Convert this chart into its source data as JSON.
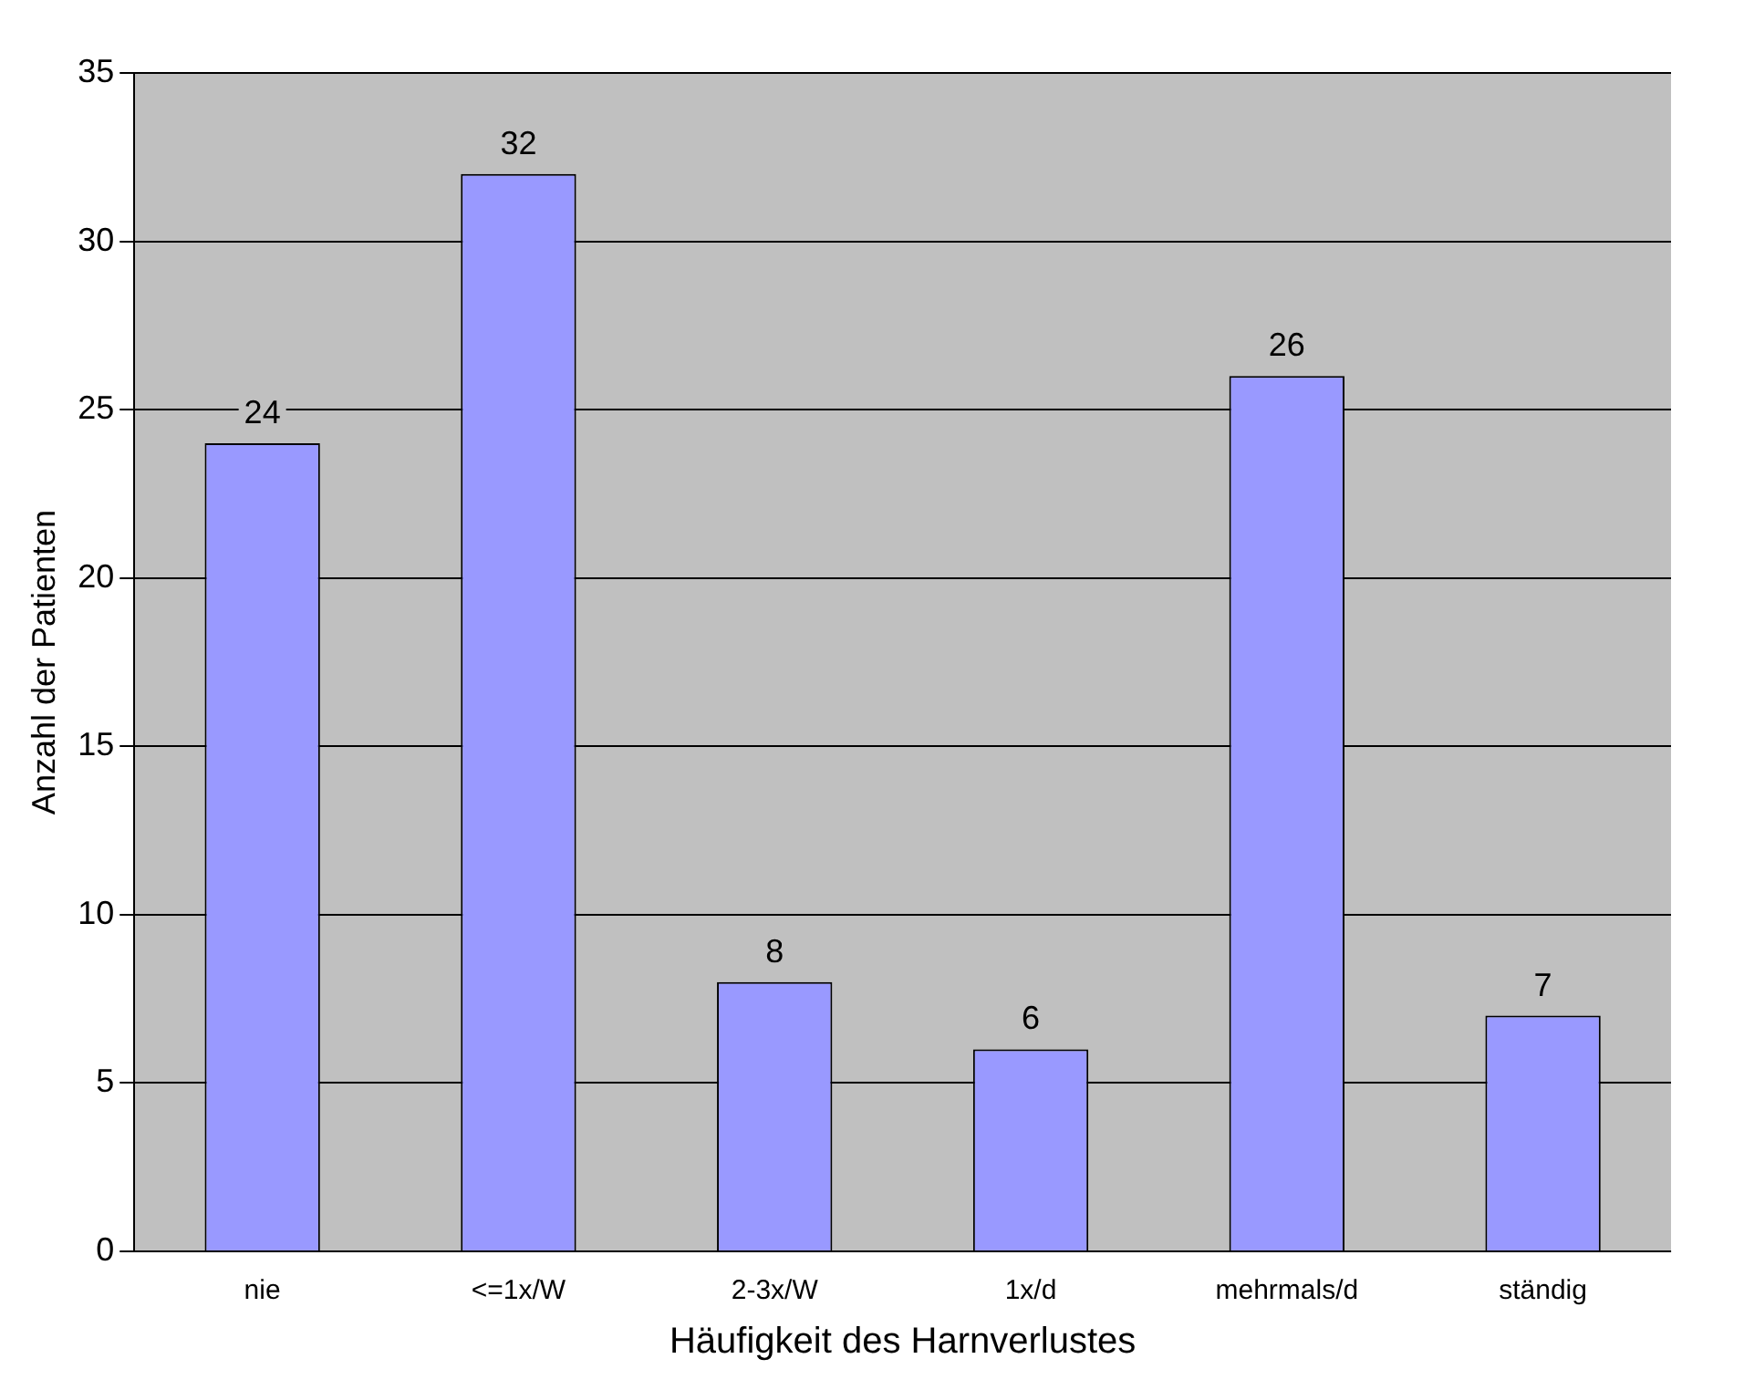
{
  "chart_data": {
    "type": "bar",
    "xlabel": "Häufigkeit des Harnverlustes",
    "ylabel": "Anzahl der Patienten",
    "categories": [
      "nie",
      "<=1x/W",
      "2-3x/W",
      "1x/d",
      "mehrmals/d",
      "ständig"
    ],
    "values": [
      24,
      32,
      8,
      6,
      26,
      7
    ],
    "color": "#9999ff",
    "ylim": [
      0,
      35
    ],
    "yticks": [
      0,
      5,
      10,
      15,
      20,
      25,
      30,
      35
    ],
    "grid": "y",
    "legend": false,
    "data_labels": true
  }
}
